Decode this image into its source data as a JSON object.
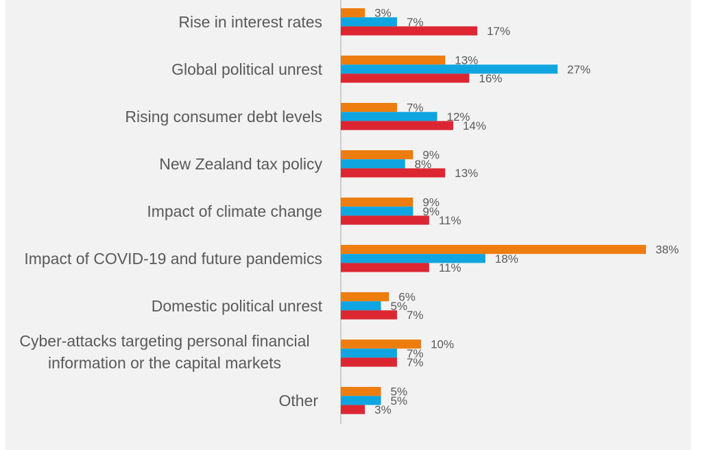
{
  "chart_data": {
    "type": "bar",
    "orientation": "horizontal",
    "title": "",
    "xlabel": "",
    "ylabel": "",
    "xlim": [
      0,
      38
    ],
    "grid": false,
    "legend": "none",
    "categories": [
      [
        "Rise in interest rates"
      ],
      [
        "Global political unrest"
      ],
      [
        "Rising consumer debt levels"
      ],
      [
        "New Zealand tax policy"
      ],
      [
        "Impact of climate change"
      ],
      [
        "Impact of COVID-19 and future pandemics"
      ],
      [
        "Domestic political unrest"
      ],
      [
        "Cyber-attacks targeting personal financial",
        "information or the capital markets"
      ],
      [
        "Other"
      ]
    ],
    "series": [
      {
        "color": "#ed7d0f",
        "values": [
          3,
          13,
          7,
          9,
          9,
          38,
          6,
          10,
          5
        ]
      },
      {
        "color": "#0fa5e0",
        "values": [
          7,
          27,
          12,
          8,
          9,
          18,
          5,
          7,
          5
        ]
      },
      {
        "color": "#dc2733",
        "values": [
          17,
          16,
          14,
          13,
          11,
          11,
          7,
          7,
          3
        ]
      }
    ],
    "value_suffix": "%"
  }
}
